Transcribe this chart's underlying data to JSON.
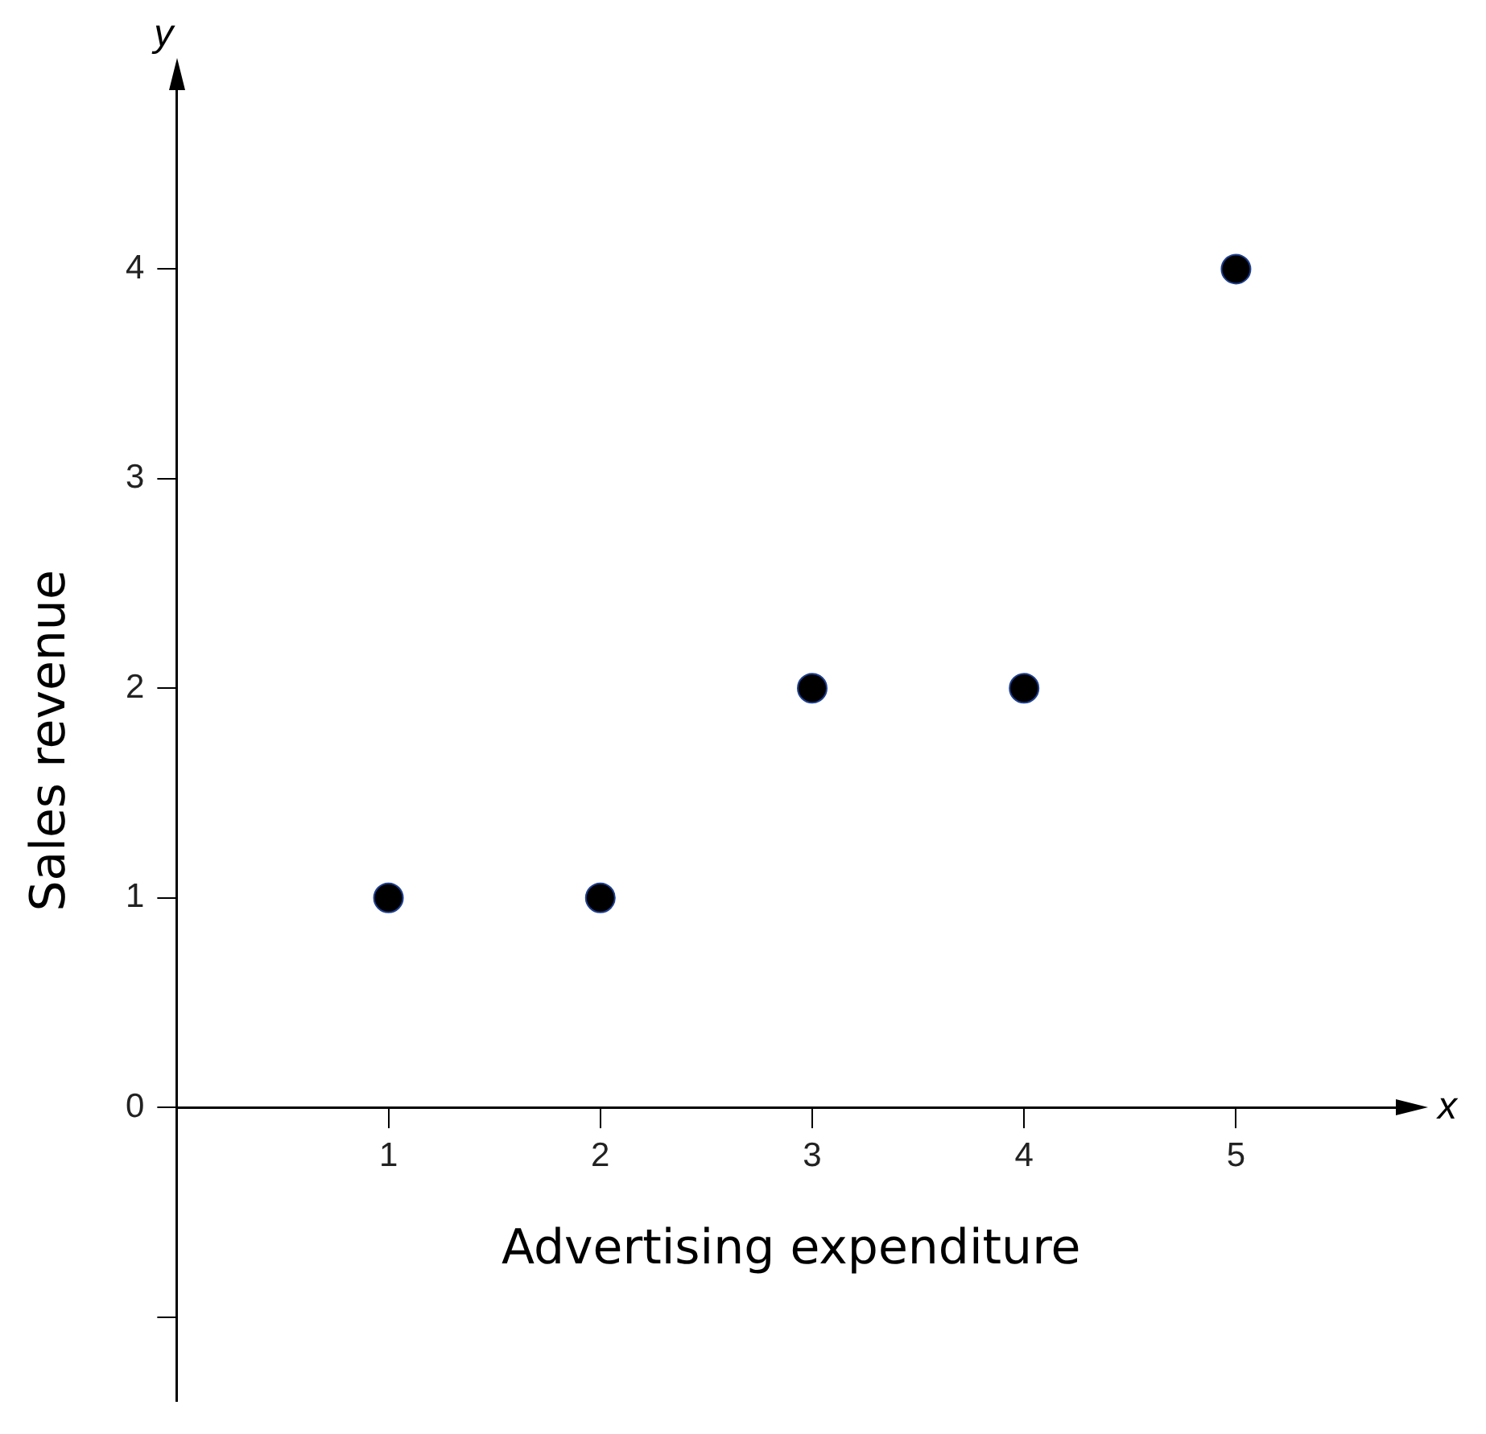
{
  "chart_data": {
    "type": "scatter",
    "xlabel": "Advertising expenditure",
    "ylabel": "Sales revenue",
    "annotations": [
      "x",
      "y"
    ],
    "x": [
      1,
      2,
      3,
      4,
      5
    ],
    "series": [
      {
        "color": "#000000",
        "values": [
          1,
          1,
          2,
          2,
          4
        ]
      }
    ],
    "xlim": [
      0,
      5.8
    ],
    "ylim": [
      -1.4,
      4.9
    ],
    "xticks": [
      1,
      2,
      3,
      4,
      5
    ],
    "yticks": [
      {
        "value": -1,
        "label": null
      },
      0,
      1,
      2,
      3,
      4
    ],
    "grid": false,
    "legend": false,
    "marker": "circle"
  }
}
